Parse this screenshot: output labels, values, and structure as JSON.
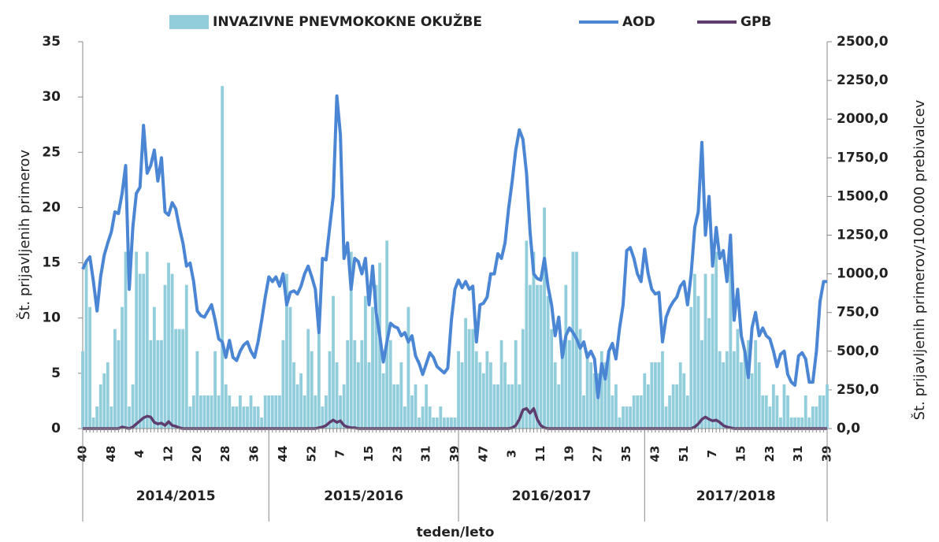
{
  "chart_data": {
    "type": "bar",
    "legend": "top",
    "ylabel": "Št. prijavljenih primerov",
    "y2label": "Št. prijavljenih primerov/100.000 prebivalcev",
    "xlabel": "teden/leto",
    "seasons": [
      "2014/2015",
      "2015/2016",
      "2016/2017",
      "2017/2018"
    ],
    "ylim": [
      0,
      35
    ],
    "yticks": [
      0,
      5,
      10,
      15,
      20,
      25,
      30,
      35
    ],
    "y2lim": [
      0,
      2500
    ],
    "y2ticks": [
      {
        "value": 0,
        "label": "0,0"
      },
      {
        "value": 250,
        "label": "250,0"
      },
      {
        "value": 500,
        "label": "500,0"
      },
      {
        "value": 750,
        "label": "750,0"
      },
      {
        "value": 1000,
        "label": "1000,0"
      },
      {
        "value": 1250,
        "label": "1250,0"
      },
      {
        "value": 1500,
        "label": "1500,0"
      },
      {
        "value": 1750,
        "label": "1750,0"
      },
      {
        "value": 2000,
        "label": "2000,0"
      },
      {
        "value": 2250,
        "label": "2250,0"
      },
      {
        "value": 2500,
        "label": "2500,0"
      }
    ],
    "categories": [
      "40",
      null,
      null,
      null,
      null,
      null,
      null,
      null,
      "48",
      null,
      null,
      null,
      null,
      null,
      null,
      null,
      "4",
      null,
      null,
      null,
      null,
      null,
      null,
      null,
      "12",
      null,
      null,
      null,
      null,
      null,
      null,
      null,
      "20",
      null,
      null,
      null,
      null,
      null,
      null,
      null,
      "28",
      null,
      null,
      null,
      null,
      null,
      null,
      null,
      "36",
      null,
      null,
      null,
      null,
      null,
      null,
      null,
      "44",
      null,
      null,
      null,
      null,
      null,
      null,
      null,
      "52",
      null,
      null,
      null,
      null,
      null,
      null,
      null,
      "7",
      null,
      null,
      null,
      null,
      null,
      null,
      null,
      "15",
      null,
      null,
      null,
      null,
      null,
      null,
      null,
      "23",
      null,
      null,
      null,
      null,
      null,
      null,
      null,
      "31",
      null,
      null,
      null,
      null,
      null,
      null,
      null,
      "39",
      null,
      null,
      null,
      null,
      null,
      null,
      null,
      "47",
      null,
      null,
      null,
      null,
      null,
      null,
      null,
      "3",
      null,
      null,
      null,
      null,
      null,
      null,
      null,
      "11",
      null,
      null,
      null,
      null,
      null,
      null,
      null,
      "19",
      null,
      null,
      null,
      null,
      null,
      null,
      null,
      "27",
      null,
      null,
      null,
      null,
      null,
      null,
      null,
      "35",
      null,
      null,
      null,
      null,
      null,
      null,
      null,
      "43",
      null,
      null,
      null,
      null,
      null,
      null,
      null,
      "51",
      null,
      null,
      null,
      null,
      null,
      null,
      null,
      "7",
      null,
      null,
      null,
      null,
      null,
      null,
      null,
      "15",
      null,
      null,
      null,
      null,
      null,
      null,
      null,
      "23",
      null,
      null,
      null,
      null,
      null,
      null,
      null,
      "31",
      null,
      null,
      null,
      null,
      null,
      null,
      null,
      "39"
    ],
    "series": [
      {
        "name": "INVAZIVNE PNEVMOKOKNE OKUŽBE",
        "type": "bar",
        "color": "#92cddc",
        "values": [
          7,
          15,
          11,
          1,
          2,
          4,
          5,
          6,
          2,
          9,
          8,
          11,
          16,
          2,
          4,
          16,
          14,
          14,
          16,
          8,
          11,
          8,
          8,
          13,
          15,
          14,
          9,
          9,
          9,
          13,
          2,
          3,
          7,
          3,
          3,
          3,
          3,
          7,
          3,
          31,
          4,
          3,
          2,
          2,
          3,
          2,
          2,
          3,
          2,
          2,
          1,
          3,
          3,
          3,
          3,
          3,
          8,
          14,
          11,
          6,
          4,
          5,
          3,
          9,
          7,
          3,
          10,
          2,
          3,
          7,
          12,
          6,
          3,
          4,
          8,
          16,
          8,
          6,
          8,
          12,
          6,
          11,
          13,
          15,
          5,
          17,
          8,
          4,
          4,
          6,
          2,
          11,
          3,
          4,
          1,
          2,
          4,
          2,
          1,
          1,
          2,
          1,
          1,
          1,
          1,
          7,
          6,
          10,
          9,
          9,
          7,
          6,
          5,
          7,
          6,
          4,
          4,
          8,
          6,
          4,
          4,
          8,
          4,
          9,
          17,
          13,
          16,
          13,
          13,
          20,
          12,
          9,
          6,
          4,
          8,
          13,
          8,
          16,
          16,
          9,
          3,
          7,
          6,
          5,
          5,
          7,
          6,
          7,
          3,
          4,
          1,
          2,
          2,
          2,
          3,
          3,
          3,
          5,
          4,
          6,
          6,
          6,
          7,
          2,
          3,
          4,
          4,
          6,
          5,
          3,
          11,
          14,
          12,
          8,
          14,
          10,
          14,
          16,
          7,
          6,
          7,
          16,
          7,
          9,
          6,
          7,
          8,
          5,
          8,
          6,
          3,
          3,
          2,
          4,
          3,
          1,
          4,
          3,
          1,
          1,
          1,
          1,
          3,
          1,
          2,
          2,
          3,
          3,
          4
        ]
      },
      {
        "name": "AOD",
        "type": "line",
        "axis": "y2",
        "color": "#4a86d4",
        "values": [
          1030,
          1080,
          1110,
          950,
          760,
          980,
          1120,
          1200,
          1270,
          1400,
          1390,
          1520,
          1700,
          900,
          1300,
          1520,
          1560,
          1960,
          1650,
          1700,
          1800,
          1600,
          1750,
          1400,
          1380,
          1460,
          1420,
          1300,
          1200,
          1050,
          1070,
          950,
          760,
          730,
          720,
          760,
          800,
          700,
          580,
          560,
          460,
          570,
          460,
          440,
          500,
          540,
          560,
          500,
          460,
          560,
          700,
          850,
          980,
          950,
          980,
          920,
          1000,
          800,
          880,
          890,
          870,
          920,
          1000,
          1050,
          980,
          900,
          620,
          1100,
          1090,
          1300,
          1500,
          2150,
          1900,
          1100,
          1200,
          900,
          1100,
          1080,
          1000,
          1100,
          800,
          1050,
          750,
          600,
          430,
          560,
          680,
          660,
          650,
          600,
          620,
          560,
          600,
          470,
          420,
          350,
          420,
          490,
          460,
          400,
          380,
          360,
          390,
          700,
          900,
          960,
          910,
          950,
          900,
          920,
          560,
          800,
          810,
          850,
          1000,
          1000,
          1130,
          1100,
          1200,
          1420,
          1600,
          1800,
          1930,
          1870,
          1650,
          1270,
          1000,
          970,
          960,
          1100,
          920,
          800,
          600,
          720,
          460,
          600,
          650,
          620,
          580,
          520,
          560,
          460,
          500,
          450,
          200,
          420,
          320,
          500,
          550,
          450,
          650,
          800,
          1150,
          1170,
          1100,
          1000,
          950,
          1160,
          1000,
          900,
          870,
          880,
          560,
          720,
          780,
          820,
          850,
          920,
          950,
          800,
          1000,
          1300,
          1400,
          1850,
          1250,
          1500,
          1050,
          1300,
          1100,
          1150,
          950,
          1250,
          700,
          900,
          600,
          500,
          330,
          650,
          750,
          600,
          650,
          600,
          580,
          500,
          400,
          480,
          500,
          350,
          300,
          280,
          470,
          490,
          450,
          300,
          300,
          500,
          820,
          950,
          950
        ]
      },
      {
        "name": "GPB",
        "type": "line",
        "axis": "y2",
        "color": "#5e3c6e",
        "values": [
          0,
          0,
          0,
          0,
          0,
          0,
          0,
          0,
          0,
          0,
          0,
          10,
          5,
          0,
          10,
          30,
          50,
          70,
          80,
          75,
          40,
          30,
          35,
          20,
          45,
          20,
          15,
          5,
          0,
          0,
          0,
          0,
          0,
          0,
          0,
          0,
          0,
          0,
          0,
          0,
          0,
          0,
          0,
          0,
          0,
          0,
          0,
          0,
          0,
          0,
          0,
          0,
          0,
          0,
          0,
          0,
          0,
          0,
          0,
          0,
          0,
          0,
          0,
          0,
          0,
          0,
          5,
          10,
          20,
          40,
          55,
          40,
          50,
          20,
          10,
          5,
          5,
          0,
          0,
          0,
          0,
          0,
          0,
          0,
          0,
          0,
          0,
          0,
          0,
          0,
          0,
          0,
          0,
          0,
          0,
          0,
          0,
          0,
          0,
          0,
          0,
          0,
          0,
          0,
          0,
          0,
          0,
          0,
          0,
          0,
          0,
          0,
          0,
          0,
          0,
          0,
          0,
          0,
          0,
          0,
          5,
          20,
          60,
          120,
          130,
          100,
          130,
          60,
          20,
          5,
          0,
          0,
          0,
          0,
          0,
          0,
          0,
          0,
          0,
          0,
          0,
          0,
          0,
          0,
          0,
          0,
          0,
          0,
          0,
          0,
          0,
          0,
          0,
          0,
          0,
          0,
          0,
          0,
          0,
          0,
          0,
          0,
          0,
          0,
          0,
          0,
          0,
          0,
          0,
          0,
          0,
          10,
          30,
          60,
          75,
          60,
          50,
          55,
          40,
          20,
          10,
          5,
          0,
          0,
          0,
          0,
          0,
          0,
          0,
          0,
          0,
          0,
          0,
          0,
          0,
          0,
          0,
          0,
          0,
          0,
          0,
          0,
          0,
          0,
          0,
          0,
          0,
          0,
          0
        ]
      }
    ]
  }
}
